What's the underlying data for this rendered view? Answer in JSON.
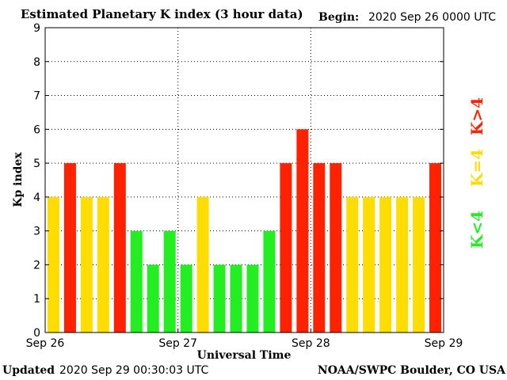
{
  "header": {
    "title": "Estimated Planetary K index (3 hour data)",
    "begin_label": "Begin:",
    "begin_value": "2020 Sep 26 0000 UTC"
  },
  "footer": {
    "updated_label": "Updated",
    "updated_value": "2020 Sep 29 00:30:03 UTC",
    "credit": "NOAA/SWPC Boulder, CO USA"
  },
  "legend": [
    {
      "label": "K<4",
      "color": "#22ee22"
    },
    {
      "label": "K=4",
      "color": "#ffdd00"
    },
    {
      "label": "K>4",
      "color": "#ff2200"
    }
  ],
  "chart_data": {
    "type": "bar",
    "title": "Estimated Planetary K index (3 hour data)",
    "xlabel": "Universal Time",
    "ylabel": "Kp index",
    "ylim": [
      0,
      9
    ],
    "yticks": [
      "0",
      "1",
      "2",
      "3",
      "4",
      "5",
      "6",
      "7",
      "8",
      "9"
    ],
    "xticks": [
      "Sep 26",
      "Sep 27",
      "Sep 28",
      "Sep 29"
    ],
    "grid": true,
    "values": [
      4,
      5,
      4,
      4,
      5,
      3,
      2,
      3,
      2,
      4,
      2,
      2,
      2,
      3,
      5,
      6,
      5,
      5,
      4,
      4,
      4,
      4,
      4,
      5
    ],
    "colors": {
      "below": "#22ee22",
      "equal": "#ffdd00",
      "above": "#ff2200"
    }
  }
}
